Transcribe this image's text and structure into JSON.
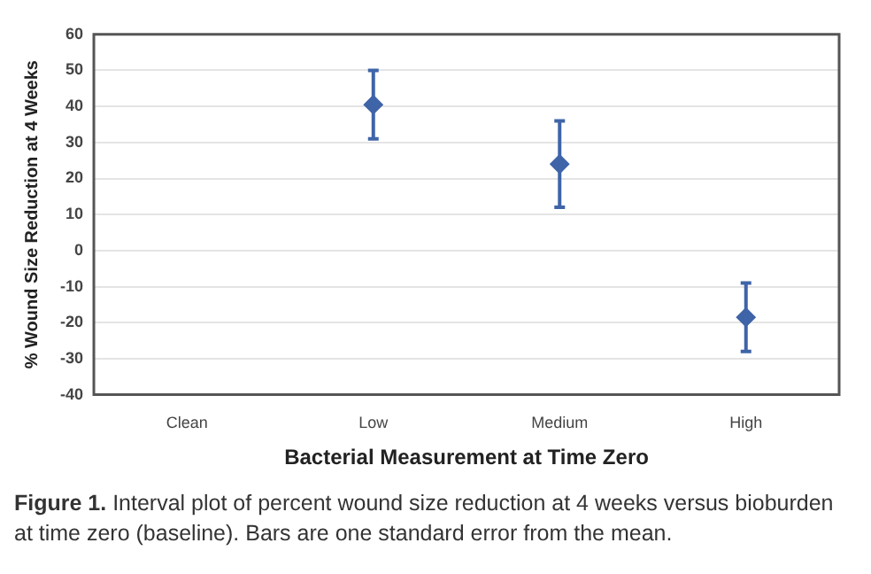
{
  "chart_data": {
    "type": "scatter",
    "xlabel": "Bacterial Measurement at Time Zero",
    "ylabel": "% Wound Size Reduction at 4 Weeks",
    "categories": [
      "Clean",
      "Low",
      "Medium",
      "High"
    ],
    "series": [
      {
        "color": "#3f64a8",
        "values": [
          null,
          40.5,
          24,
          -18.5
        ],
        "errors": [
          null,
          9.5,
          12,
          9.5
        ]
      }
    ],
    "ylim": [
      -40,
      60
    ],
    "yticks": [
      -40,
      -30,
      -20,
      -10,
      0,
      10,
      20,
      30,
      40,
      50,
      60
    ],
    "grid": "y",
    "marker": "diamond",
    "annotations": [
      "Figure 1.",
      "Interval plot of percent wound size reduction at 4 weeks versus bioburden at time zero (baseline). Bars are one standard error from the mean."
    ]
  }
}
